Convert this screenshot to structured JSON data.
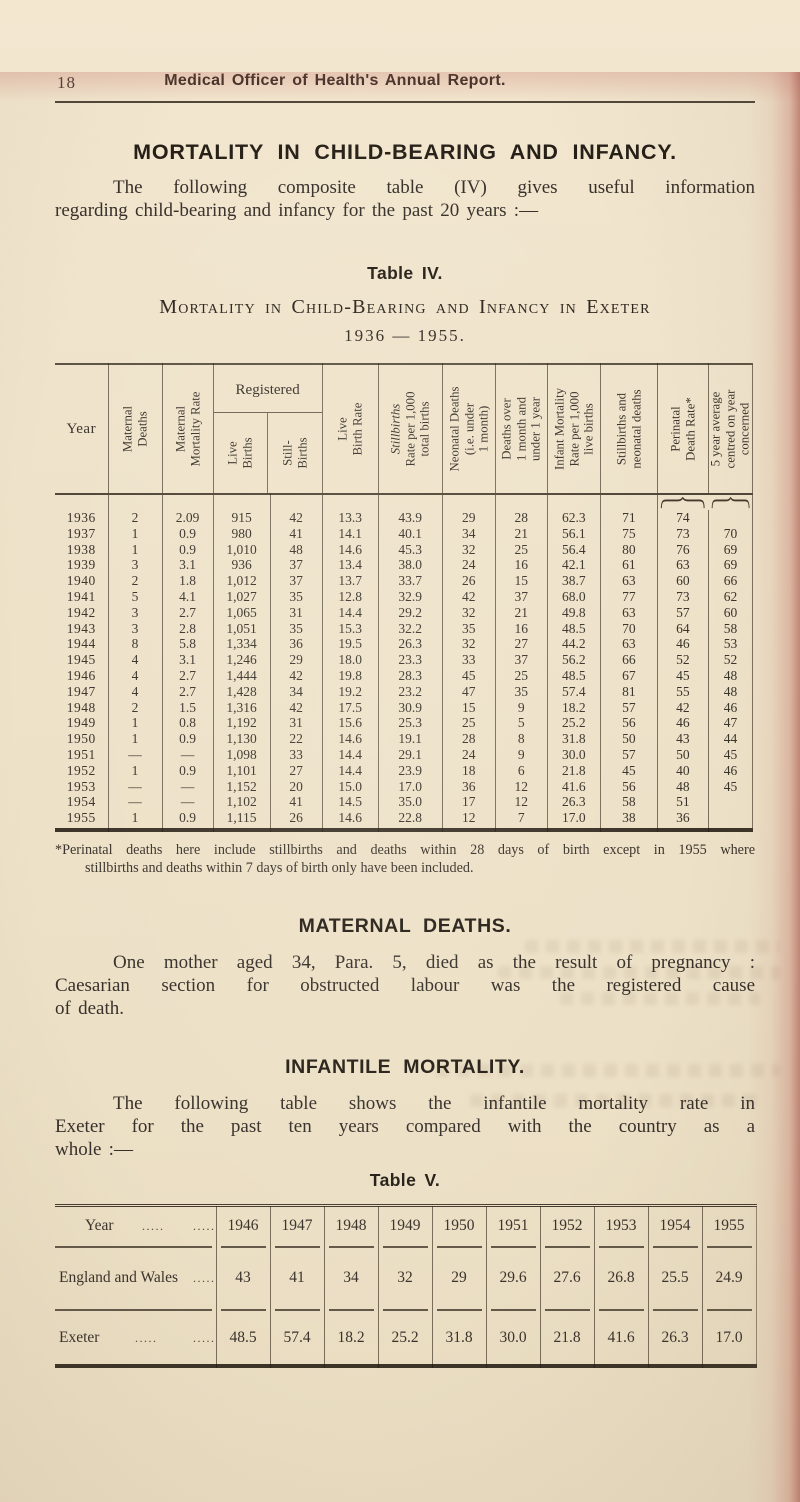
{
  "page": {
    "number": "18",
    "running_title": "Medical Officer of Health's Annual Report."
  },
  "section_mortality": {
    "heading": "MORTALITY IN CHILD-BEARING AND INFANCY.",
    "lines": [
      "The following composite table (IV) gives useful information",
      "regarding child-bearing and infancy for the past 20 years :—"
    ]
  },
  "table4": {
    "label": "Table IV.",
    "subtitle": "Mortality in Child-Bearing and Infancy in Exeter",
    "period": "1936 — 1955.",
    "headers": {
      "year": "Year",
      "maternal_deaths": "Maternal\nDeaths",
      "maternal_mortality_rate": "Maternal\nMortality Rate",
      "registered": "Registered",
      "live_births": "Live\nBirths",
      "still_births": "Still-\nBirths",
      "live_birth_rate": "Live\nBirth Rate",
      "stillbirth_rate_word": "Stillbirths",
      "stillbirth_rate_rest": "\nRate per 1,000\ntotal births",
      "neonatal_deaths": "Neonatal Deaths\n(i.e. under\n1 month)",
      "deaths_over_month": "Deaths over\n1 month and\nunder 1 year",
      "infant_mortality_rate": "Infant Mortality\nRate per 1,000\nlive births",
      "stillbirths_neonatal": "Stillbirths and\nneonatal deaths",
      "perinatal": "Perinatal\nDeath Rate*",
      "five_year_avg": "5 year average\ncentred on year\nconcerned"
    },
    "rows": [
      {
        "year": "1936",
        "values": [
          "2",
          "2.09",
          "915",
          "42",
          "13.3",
          "43.9",
          "29",
          "28",
          "62.3",
          "71",
          "74",
          ""
        ],
        "bold": []
      },
      {
        "year": "1937",
        "values": [
          "1",
          "0.9",
          "980",
          "41",
          "14.1",
          "40.1",
          "34",
          "21",
          "56.1",
          "75",
          "73",
          "70"
        ],
        "bold": []
      },
      {
        "year": "1938",
        "values": [
          "1",
          "0.9",
          "1,010",
          "48",
          "14.6",
          "45.3",
          "32",
          "25",
          "56.4",
          "80",
          "76",
          "69"
        ],
        "bold": []
      },
      {
        "year": "1939",
        "values": [
          "3",
          "3.1",
          "936",
          "37",
          "13.4",
          "38.0",
          "24",
          "16",
          "42.1",
          "61",
          "63",
          "69"
        ],
        "bold": []
      },
      {
        "year": "1940",
        "values": [
          "2",
          "1.8",
          "1,012",
          "37",
          "13.7",
          "33.7",
          "26",
          "15",
          "38.7",
          "63",
          "60",
          "66"
        ],
        "bold": []
      },
      {
        "year": "1941",
        "values": [
          "5",
          "4.1",
          "1,027",
          "35",
          "12.8",
          "32.9",
          "42",
          "37",
          "68.0",
          "77",
          "73",
          "62"
        ],
        "bold": []
      },
      {
        "year": "1942",
        "values": [
          "3",
          "2.7",
          "1,065",
          "31",
          "14.4",
          "29.2",
          "32",
          "21",
          "49.8",
          "63",
          "57",
          "60"
        ],
        "bold": []
      },
      {
        "year": "1943",
        "values": [
          "3",
          "2.8",
          "1,051",
          "35",
          "15.3",
          "32.2",
          "35",
          "16",
          "48.5",
          "70",
          "64",
          "58"
        ],
        "bold": []
      },
      {
        "year": "1944",
        "values": [
          "8",
          "5.8",
          "1,334",
          "36",
          "19.5",
          "26.3",
          "32",
          "27",
          "44.2",
          "63",
          "46",
          "53"
        ],
        "bold": []
      },
      {
        "year": "1945",
        "values": [
          "4",
          "3.1",
          "1,246",
          "29",
          "18.0",
          "23.3",
          "33",
          "37",
          "56.2",
          "66",
          "52",
          "52"
        ],
        "bold": []
      },
      {
        "year": "1946",
        "values": [
          "4",
          "2.7",
          "1,444",
          "42",
          "19.8",
          "28.3",
          "45",
          "25",
          "48.5",
          "67",
          "45",
          "48"
        ],
        "bold": [
          2,
          4
        ]
      },
      {
        "year": "1947",
        "values": [
          "4",
          "2.7",
          "1,428",
          "34",
          "19.2",
          "23.2",
          "47",
          "35",
          "57.4",
          "81",
          "55",
          "48"
        ],
        "bold": []
      },
      {
        "year": "1948",
        "values": [
          "2",
          "1.5",
          "1,316",
          "42",
          "17.5",
          "30.9",
          "15",
          "9",
          "18.2",
          "57",
          "42",
          "46"
        ],
        "bold": [
          6,
          8
        ]
      },
      {
        "year": "1949",
        "values": [
          "1",
          "0.8",
          "1,192",
          "31",
          "15.6",
          "25.3",
          "25",
          "5",
          "25.2",
          "56",
          "46",
          "47"
        ],
        "bold": [
          1,
          7
        ]
      },
      {
        "year": "1950",
        "values": [
          "1",
          "0.9",
          "1,130",
          "22",
          "14.6",
          "19.1",
          "28",
          "8",
          "31.8",
          "50",
          "43",
          "44"
        ],
        "bold": []
      },
      {
        "year": "1951",
        "values": [
          "—",
          "—",
          "1,098",
          "33",
          "14.4",
          "29.1",
          "24",
          "9",
          "30.0",
          "57",
          "50",
          "45"
        ],
        "bold": []
      },
      {
        "year": "1952",
        "values": [
          "1",
          "0.9",
          "1,101",
          "27",
          "14.4",
          "23.9",
          "18",
          "6",
          "21.8",
          "45",
          "40",
          "46"
        ],
        "bold": [
          9
        ]
      },
      {
        "year": "1953",
        "values": [
          "—",
          "—",
          "1,152",
          "20",
          "15.0",
          "17.0",
          "36",
          "12",
          "41.6",
          "56",
          "48",
          "45"
        ],
        "bold": [
          3,
          5
        ]
      },
      {
        "year": "1954",
        "values": [
          "—",
          "—",
          "1,102",
          "41",
          "14.5",
          "35.0",
          "17",
          "12",
          "26.3",
          "58",
          "51",
          ""
        ],
        "bold": []
      },
      {
        "year": "1955",
        "values": [
          "1",
          "0.9",
          "1,115",
          "26",
          "14.6",
          "22.8",
          "12",
          "7",
          "17.0",
          "38",
          "36",
          ""
        ],
        "bold": []
      }
    ],
    "footnote_lines": [
      "*Perinatal deaths here include stillbirths and deaths within 28 days of birth except in 1955 where",
      "stillbirths and deaths within 7 days of birth only have been included."
    ]
  },
  "section_maternal": {
    "heading": "MATERNAL DEATHS.",
    "lines": [
      "One mother aged 34, Para. 5, died as the result of pregnancy :",
      "Caesarian section for obstructed labour was the registered cause",
      "of death."
    ]
  },
  "section_infantile": {
    "heading": "INFANTILE MORTALITY.",
    "lines": [
      "The following table shows the infantile mortality rate in",
      "Exeter for the past ten years compared with the country as a",
      "whole :—"
    ]
  },
  "table5": {
    "label": "Table V.",
    "leader": ".....",
    "year_label": "Year",
    "years": [
      "1946",
      "1947",
      "1948",
      "1949",
      "1950",
      "1951",
      "1952",
      "1953",
      "1954",
      "1955"
    ],
    "rows": [
      {
        "label": "England and Wales",
        "leaders": 1,
        "values": [
          "43",
          "41",
          "34",
          "32",
          "29",
          "29.6",
          "27.6",
          "26.8",
          "25.5",
          "24.9"
        ]
      },
      {
        "label": "Exeter",
        "leaders": 2,
        "values": [
          "48.5",
          "57.4",
          "18.2",
          "25.2",
          "31.8",
          "30.0",
          "21.8",
          "41.6",
          "26.3",
          "17.0"
        ]
      }
    ]
  }
}
